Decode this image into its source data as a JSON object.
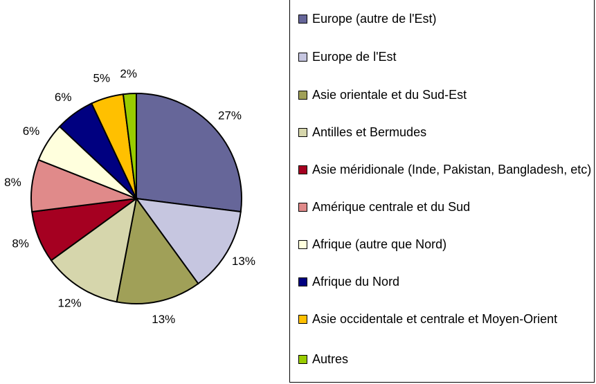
{
  "chart_data": {
    "type": "pie",
    "categories": [
      "Europe (autre de l'Est)",
      "Europe de l'Est",
      "Asie orientale et du Sud-Est",
      "Antilles et Bermudes",
      "Asie méridionale (Inde, Pakistan, Bangladesh, etc)",
      "Amérique centrale et du Sud",
      "Afrique (autre que Nord)",
      "Afrique du Nord",
      "Asie occidentale et centrale et Moyen-Orient",
      "Autres"
    ],
    "values": [
      27,
      13,
      13,
      12,
      8,
      8,
      6,
      6,
      5,
      2
    ],
    "value_labels": [
      "27%",
      "13%",
      "13%",
      "12%",
      "8%",
      "8%",
      "6%",
      "6%",
      "5%",
      "2%"
    ],
    "colors": [
      "#666699",
      "#c6c6e0",
      "#a0a058",
      "#d6d6ac",
      "#a50021",
      "#e08a8a",
      "#ffffdd",
      "#000080",
      "#ffc000",
      "#99cc00"
    ],
    "legend": "right"
  }
}
